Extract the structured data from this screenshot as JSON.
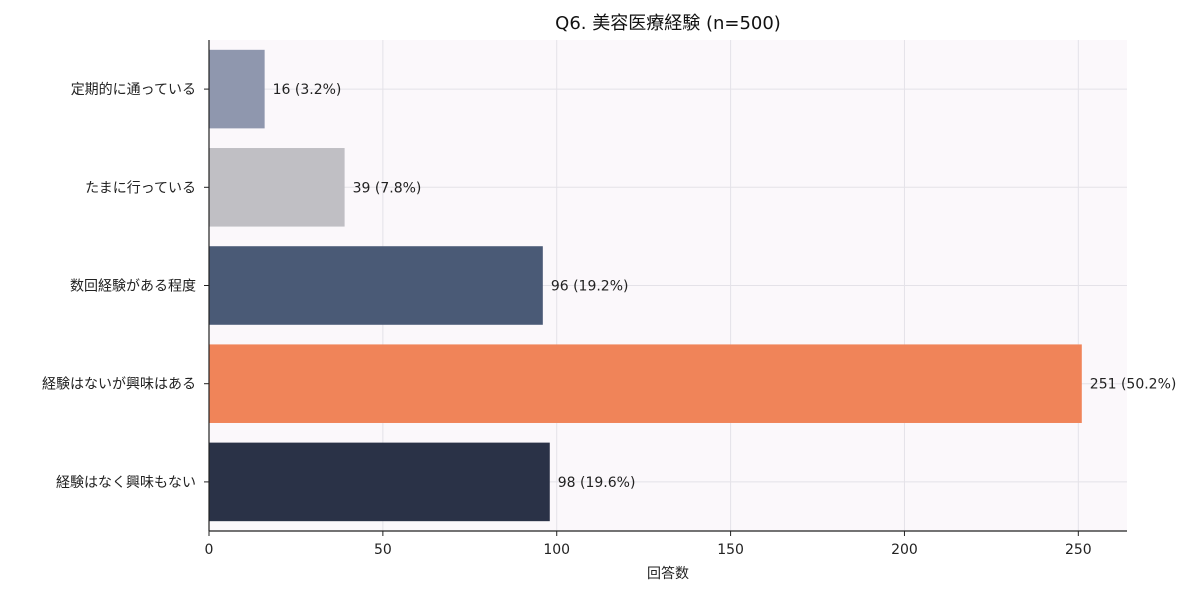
{
  "chart_data": {
    "type": "bar",
    "orientation": "horizontal",
    "title": "Q6. 美容医療経験 (n=500)",
    "xlabel": "回答数",
    "ylabel": "",
    "categories": [
      "定期的に通っている",
      "たまに行っている",
      "数回経験がある程度",
      "経験はないが興味はある",
      "経験はなく興味もない"
    ],
    "values": [
      16,
      39,
      96,
      251,
      98
    ],
    "data_labels": [
      "16 (3.2%)",
      "39 (7.8%)",
      "96 (19.2%)",
      "251 (50.2%)",
      "98 (19.6%)"
    ],
    "colors": [
      "#8f97ae",
      "#c0bfc4",
      "#4a5a76",
      "#f08459",
      "#2a3247"
    ],
    "xlim": [
      0,
      264
    ],
    "xticks": [
      0,
      50,
      100,
      150,
      200,
      250
    ],
    "grid": true,
    "legend": "none"
  }
}
